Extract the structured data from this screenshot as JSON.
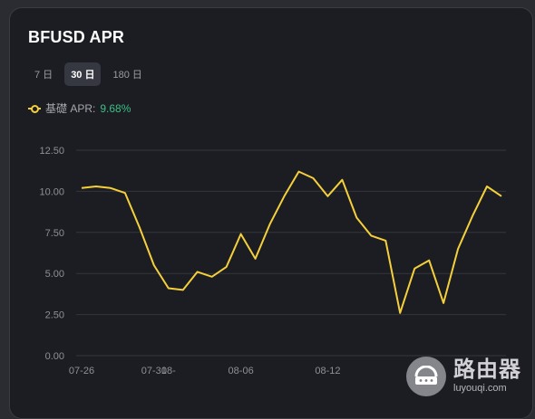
{
  "card": {
    "title": "BFUSD APR"
  },
  "tabs": [
    {
      "label": "7 日",
      "active": false
    },
    {
      "label": "30 日",
      "active": true
    },
    {
      "label": "180 日",
      "active": false
    }
  ],
  "legend": {
    "label": "基礎 APR:",
    "value": "9.68%",
    "line_color": "#f5d03b",
    "value_color": "#3bbf86"
  },
  "watermark": {
    "title": "路由器",
    "url": "luyouqi.com"
  },
  "chart_data": {
    "type": "line",
    "title": "",
    "xlabel": "",
    "ylabel": "",
    "ylim": [
      0,
      12.5
    ],
    "yticks": [
      "12.50",
      "10.00",
      "7.50",
      "5.00",
      "2.50",
      "0.00"
    ],
    "grid": true,
    "x_tick_labels": [
      "07-26",
      "07-31",
      "08-06",
      "08-12",
      "08-"
    ],
    "series": [
      {
        "name": "基礎 APR",
        "color": "#f5d03b",
        "x": [
          "07-26",
          "07-27",
          "07-28",
          "07-29",
          "07-30",
          "07-31",
          "08-01",
          "08-02",
          "08-03",
          "08-04",
          "08-05",
          "08-06",
          "08-07",
          "08-08",
          "08-09",
          "08-10",
          "08-11",
          "08-12",
          "08-13",
          "08-14",
          "08-15",
          "08-16",
          "08-17",
          "08-18",
          "08-19",
          "08-20",
          "08-21",
          "08-22",
          "08-23",
          "08-24"
        ],
        "values": [
          10.2,
          10.3,
          10.2,
          9.9,
          7.8,
          5.5,
          4.1,
          4.0,
          5.1,
          4.8,
          5.4,
          7.4,
          5.9,
          8.0,
          9.7,
          11.2,
          10.8,
          9.7,
          10.7,
          8.4,
          7.3,
          7.0,
          2.6,
          5.3,
          5.8,
          3.2,
          6.5,
          8.5,
          10.3,
          9.7
        ]
      }
    ]
  }
}
